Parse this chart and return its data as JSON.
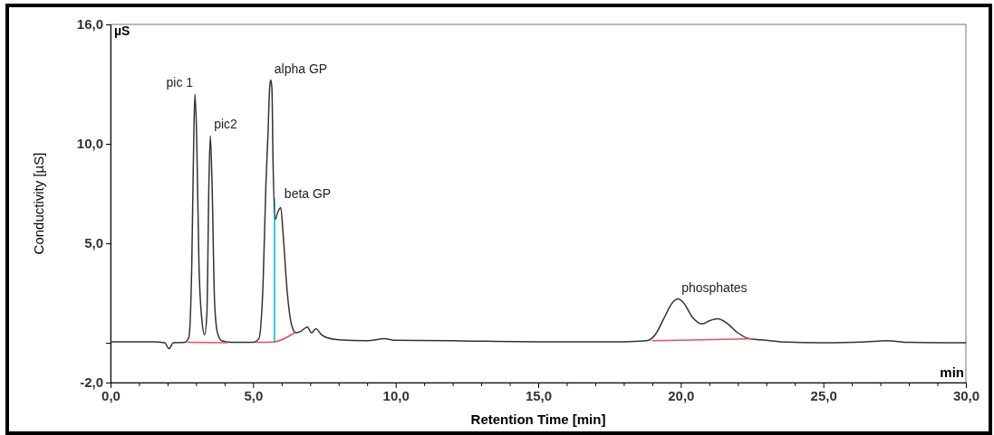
{
  "chart_data": {
    "type": "line",
    "xlabel": "Retention Time [min]",
    "ylabel": "Conductivity [µS]",
    "xlim": [
      0,
      30
    ],
    "ylim": [
      -2,
      16
    ],
    "xticks": [
      {
        "value": 0,
        "label": "0,0"
      },
      {
        "value": 1,
        "label": null
      },
      {
        "value": 2,
        "label": null
      },
      {
        "value": 3,
        "label": null
      },
      {
        "value": 4,
        "label": null
      },
      {
        "value": 5,
        "label": "5,0"
      },
      {
        "value": 6,
        "label": null
      },
      {
        "value": 7,
        "label": null
      },
      {
        "value": 8,
        "label": null
      },
      {
        "value": 9,
        "label": null
      },
      {
        "value": 10,
        "label": "10,0"
      },
      {
        "value": 11,
        "label": null
      },
      {
        "value": 12,
        "label": null
      },
      {
        "value": 13,
        "label": null
      },
      {
        "value": 14,
        "label": null
      },
      {
        "value": 15,
        "label": "15,0"
      },
      {
        "value": 16,
        "label": null
      },
      {
        "value": 17,
        "label": null
      },
      {
        "value": 18,
        "label": null
      },
      {
        "value": 19,
        "label": null
      },
      {
        "value": 20,
        "label": "20,0"
      },
      {
        "value": 21,
        "label": null
      },
      {
        "value": 22,
        "label": null
      },
      {
        "value": 23,
        "label": null
      },
      {
        "value": 24,
        "label": null
      },
      {
        "value": 25,
        "label": "25,0"
      },
      {
        "value": 26,
        "label": null
      },
      {
        "value": 27,
        "label": null
      },
      {
        "value": 28,
        "label": null
      },
      {
        "value": 29,
        "label": null
      },
      {
        "value": 30,
        "label": "30,0"
      }
    ],
    "yticks": [
      {
        "value": -2,
        "label": "-2,0"
      },
      {
        "value": 0,
        "label": null
      },
      {
        "value": 5,
        "label": "5,0"
      },
      {
        "value": 10,
        "label": "10,0"
      },
      {
        "value": 16,
        "label": "16,0"
      }
    ],
    "grid": false,
    "marker": "none",
    "line_style": "solid",
    "series": [
      {
        "color": "#333333",
        "x": [
          0,
          1.5,
          1.9,
          2.05,
          2.2,
          2.6,
          2.75,
          2.85,
          2.92,
          2.96,
          3.02,
          3.1,
          3.2,
          3.3,
          3.38,
          3.45,
          3.5,
          3.56,
          3.65,
          3.75,
          3.9,
          4.2,
          5.0,
          5.2,
          5.35,
          5.45,
          5.52,
          5.58,
          5.62,
          5.66,
          5.7,
          5.78,
          5.85,
          5.97,
          6.05,
          6.2,
          6.35,
          6.5,
          6.7,
          6.9,
          7.05,
          7.2,
          7.4,
          7.6,
          8.0,
          9.0,
          9.6,
          10.0,
          12,
          15,
          18,
          18.8,
          19.1,
          19.4,
          19.7,
          19.9,
          20.1,
          20.4,
          20.75,
          21.0,
          21.3,
          21.6,
          22.0,
          22.4,
          22.8,
          23.5,
          25,
          26.5,
          27.2,
          28,
          30
        ],
        "values": [
          0.05,
          0.05,
          0.0,
          -0.3,
          0,
          0.02,
          0.3,
          4,
          10.4,
          12.5,
          10.4,
          4,
          1.2,
          0.4,
          1.5,
          8,
          10.4,
          8,
          2,
          0.5,
          0.1,
          0.02,
          0.02,
          0.2,
          3,
          8,
          10.4,
          12.8,
          13.2,
          12.8,
          9,
          6.2,
          6.5,
          6.8,
          5.5,
          2.5,
          0.9,
          0.5,
          0.6,
          0.8,
          0.5,
          0.7,
          0.4,
          0.25,
          0.15,
          0.1,
          0.2,
          0.12,
          0.1,
          0.05,
          0.05,
          0.1,
          0.4,
          1.2,
          2.0,
          2.2,
          2.0,
          1.3,
          0.95,
          1.1,
          1.2,
          1.0,
          0.5,
          0.2,
          0.15,
          0.05,
          0.0,
          0.05,
          0.1,
          0.02,
          0.0
        ]
      },
      {
        "color": "#e8505b",
        "x": [
          2.7,
          4.1,
          4.5,
          5.1,
          5.75,
          6.45,
          12,
          19.0,
          22.6
        ],
        "values": [
          0.02,
          0.0,
          null,
          0.02,
          0.05,
          0.5,
          null,
          0.1,
          0.2
        ]
      }
    ],
    "ref_lines": [
      {
        "axis": "x",
        "value": 5.75,
        "color": "#33ccdd"
      }
    ],
    "annotations": [
      {
        "text": "pic 1",
        "x": 2.96,
        "y": 12.5
      },
      {
        "text": "pic2",
        "x": 3.5,
        "y": 10.4
      },
      {
        "text": "alpha GP",
        "x": 5.62,
        "y": 13.2
      },
      {
        "text": "beta GP",
        "x": 5.97,
        "y": 6.8
      },
      {
        "text": "phosphates",
        "x": 19.9,
        "y": 2.2
      },
      "µS",
      "min"
    ]
  }
}
